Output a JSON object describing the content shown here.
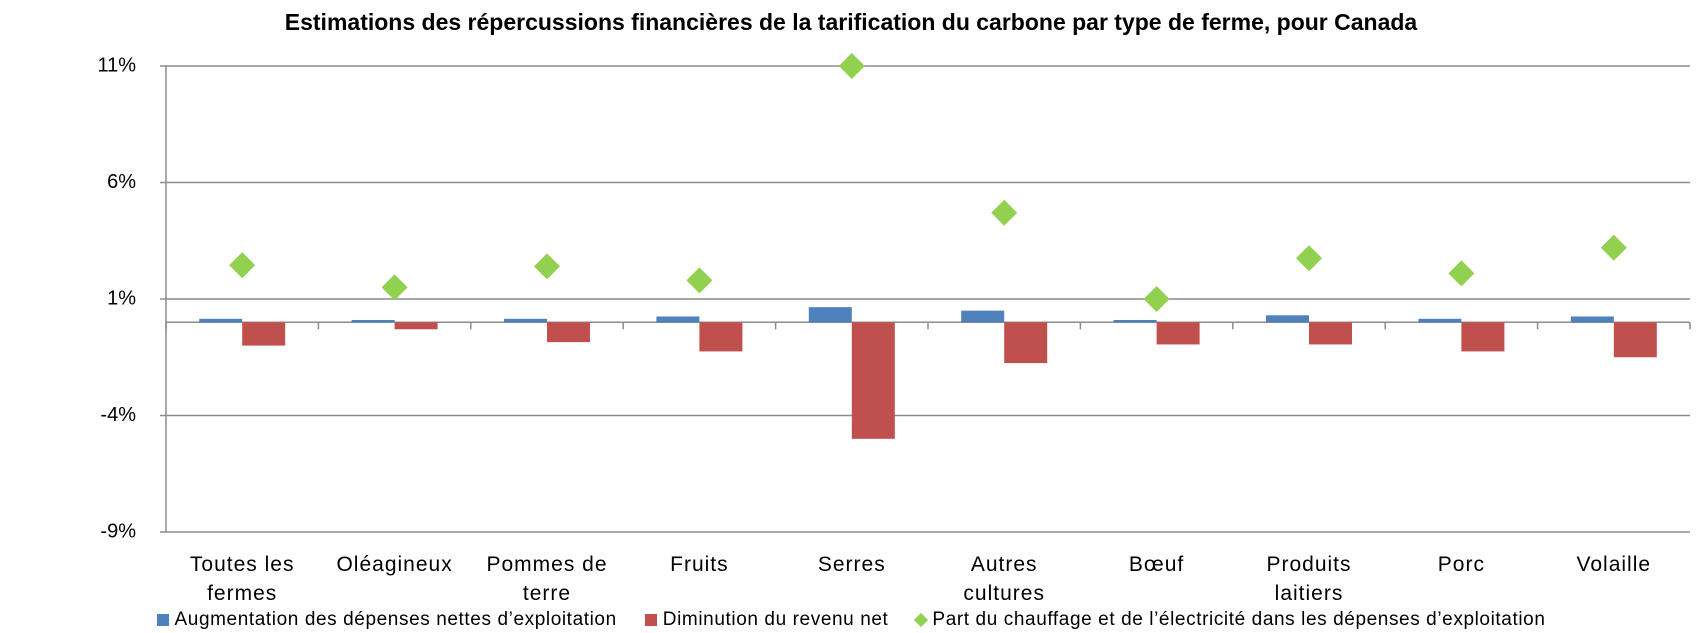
{
  "chart_data": {
    "type": "bar",
    "title": "Estimations des répercussions financières de la tarification du carbone par type de ferme, pour Canada",
    "categories": [
      "Toutes les fermes",
      "Oléagineux",
      "Pommes de terre",
      "Fruits",
      "Serres",
      "Autres cultures",
      "Bœuf",
      "Produits laitiers",
      "Porc",
      "Volaille"
    ],
    "series": [
      {
        "name": "Augmentation des dépenses nettes d’exploitation",
        "color": "#4f81bd",
        "type": "bar",
        "values": [
          0.15,
          0.1,
          0.15,
          0.25,
          0.65,
          0.5,
          0.1,
          0.3,
          0.15,
          0.25
        ]
      },
      {
        "name": "Diminution du revenu net",
        "color": "#c0504d",
        "type": "bar",
        "values": [
          -1.0,
          -0.3,
          -0.85,
          -1.25,
          -5.0,
          -1.75,
          -0.95,
          -0.95,
          -1.25,
          -1.5
        ]
      },
      {
        "name": "Part du chauffage et de l’électricité dans les dépenses d’exploitation",
        "color": "#92d050",
        "type": "scatter",
        "values": [
          2.45,
          1.5,
          2.4,
          1.8,
          11.0,
          4.7,
          1.0,
          2.75,
          2.1,
          3.2
        ]
      }
    ],
    "ylim": [
      -9,
      11
    ],
    "yticks": [
      {
        "value": -9,
        "label": "-9%"
      },
      {
        "value": -4,
        "label": "-4%"
      },
      {
        "value": 1,
        "label": "1%"
      },
      {
        "value": 6,
        "label": "6%"
      },
      {
        "value": 11,
        "label": "11%"
      }
    ],
    "grid": true,
    "legend": "bottom"
  }
}
